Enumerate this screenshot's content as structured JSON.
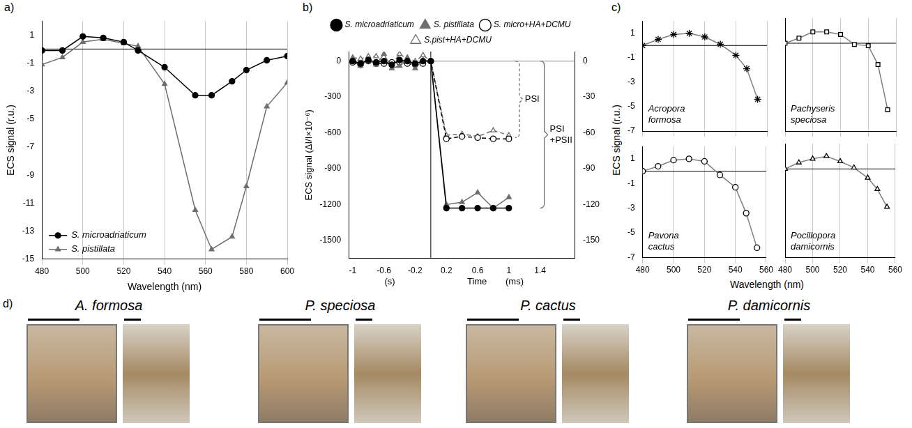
{
  "chart_data": [
    {
      "panel": "a)",
      "type": "line",
      "xlabel": "Wavelength (nm)",
      "ylabel": "ECS signal (r.u.)",
      "x": [
        480,
        490,
        500,
        510,
        520,
        527,
        540,
        555,
        563,
        573,
        580,
        590,
        600
      ],
      "series": [
        {
          "name": "S. microadriaticum",
          "color": "#000000",
          "marker": "circle",
          "line_style": "solid",
          "values": [
            -0.1,
            -0.1,
            0.9,
            0.8,
            0.5,
            -0.1,
            -1.3,
            -3.3,
            -3.3,
            -2.3,
            -1.5,
            -0.8,
            -0.5
          ]
        },
        {
          "name": "S. pistillata",
          "color": "#6e6e6e",
          "marker": "triangle",
          "line_style": "solid",
          "values": [
            -1.1,
            -0.6,
            0.5,
            0.7,
            0.4,
            0.2,
            -2.5,
            -11.5,
            -14.3,
            -13.4,
            -9.8,
            -4.1,
            -2.4
          ]
        }
      ],
      "xlim": [
        480,
        600
      ],
      "xticks": [
        480,
        500,
        520,
        540,
        560,
        580,
        600
      ],
      "ylim": [
        -15,
        2
      ],
      "yticks": [
        1,
        -1,
        -3,
        -5,
        -7,
        -9,
        -11,
        -13,
        -15
      ],
      "grid": "x",
      "legend": "lower left"
    },
    {
      "panel": "b)",
      "type": "line",
      "xlabel": "Time",
      "x_units": [
        "(s)",
        "(ms)"
      ],
      "ylabel": "ECS signal (ΔI/I×10⁻⁶)",
      "x": [
        -1,
        -0.9,
        -0.8,
        -0.7,
        -0.6,
        -0.5,
        -0.4,
        -0.3,
        -0.2,
        -0.1,
        0,
        0.2,
        0.4,
        0.6,
        0.8,
        1
      ],
      "series": [
        {
          "name": "S. microadriaticum",
          "color": "#000000",
          "marker": "circle",
          "line_style": "solid",
          "values": [
            0,
            -20,
            10,
            -10,
            0,
            -30,
            10,
            0,
            -20,
            0,
            0,
            -1230,
            -1230,
            -1230,
            -1230,
            -1230
          ]
        },
        {
          "name": "S. pistillata",
          "color": "#6e6e6e",
          "marker": "triangle",
          "line_style": "solid",
          "values": [
            20,
            -40,
            10,
            -30,
            60,
            -60,
            -40,
            30,
            -60,
            10,
            0,
            -1200,
            -1180,
            -1100,
            -1230,
            -1140
          ]
        },
        {
          "name": "S. micro+HA+DCMU",
          "color": "#000000",
          "marker": "open circle",
          "line_style": "dashed",
          "values": [
            -10,
            -30,
            0,
            -20,
            -20,
            -10,
            -10,
            -20,
            -30,
            -20,
            0,
            -650,
            -630,
            -640,
            -650,
            -650
          ]
        },
        {
          "name": "S.pist+HA+DCMU",
          "color": "#6e6e6e",
          "marker": "open triangle",
          "line_style": "dashed",
          "values": [
            30,
            20,
            40,
            40,
            -10,
            -30,
            60,
            20,
            0,
            50,
            0,
            -620,
            -610,
            -630,
            -580,
            -620
          ]
        }
      ],
      "xlim": [
        -1.05,
        1.85
      ],
      "xticks": [
        -1,
        -0.6,
        -0.2,
        0.2,
        0.6,
        1,
        1.4
      ],
      "ylim": [
        -1650,
        80
      ],
      "yticks": [
        0,
        -300,
        -600,
        -900,
        -1200,
        -1500
      ],
      "y2lim": [
        -165,
        8
      ],
      "y2ticks": [
        0,
        -30,
        -60,
        -90,
        -120,
        -150
      ],
      "grid": false,
      "legend": "top",
      "annotations": [
        {
          "text": "PSI",
          "x": 1.08,
          "y_range": [
            0,
            -640
          ],
          "line_style": "dashed"
        },
        {
          "text": "PSI +PSII",
          "x": 1.4,
          "y_range": [
            0,
            -1230
          ],
          "line_style": "solid"
        }
      ]
    },
    {
      "panel": "c)",
      "type": "line",
      "xlabel": "Wavelength (nm)",
      "ylabel": "ECS signal (r.u.)",
      "xlim": [
        480,
        560
      ],
      "xticks": [
        480,
        500,
        520,
        540,
        560
      ],
      "ylim": [
        -7,
        2
      ],
      "yticks": [
        1,
        -1,
        -3,
        -5,
        -7
      ],
      "grid": "x",
      "subplots": [
        {
          "annotation": "Acropora formosa",
          "color": "#808080",
          "marker": "star",
          "tick_labels": "y",
          "x": [
            480,
            490,
            500,
            510,
            520,
            530,
            540,
            547,
            554
          ],
          "values": [
            0,
            0.5,
            0.9,
            1.0,
            0.7,
            0.1,
            -0.8,
            -1.9,
            -4.4
          ]
        },
        {
          "annotation": "Pachyseris speciosa",
          "color": "#808080",
          "marker": "open square",
          "tick_labels": false,
          "x": [
            480,
            490,
            500,
            510,
            520,
            530,
            540,
            547,
            554
          ],
          "values": [
            0,
            0.4,
            0.9,
            0.9,
            0.7,
            -0.1,
            -0.2,
            -1.7,
            -5.3
          ]
        },
        {
          "annotation": "Pavona cactus",
          "color": "#808080",
          "marker": "open circle",
          "tick_labels": true,
          "x": [
            480,
            490,
            500,
            510,
            520,
            530,
            540,
            547,
            554
          ],
          "values": [
            0,
            0.4,
            0.9,
            1.0,
            0.8,
            -0.3,
            -1.3,
            -3.4,
            -6.2
          ]
        },
        {
          "annotation": "Pocillopora damicornis",
          "color": "#808080",
          "marker": "open triangle",
          "tick_labels": "x",
          "x": [
            480,
            490,
            500,
            510,
            520,
            530,
            540,
            547,
            554
          ],
          "values": [
            0,
            0.5,
            0.8,
            1.0,
            0.6,
            0.1,
            -0.7,
            -1.6,
            -3.0
          ]
        }
      ]
    }
  ],
  "photos": {
    "panel": "d)",
    "items": [
      {
        "title": "A. formosa"
      },
      {
        "title": "P. speciosa"
      },
      {
        "title": "P. cactus"
      },
      {
        "title": "P. damicornis"
      }
    ]
  }
}
